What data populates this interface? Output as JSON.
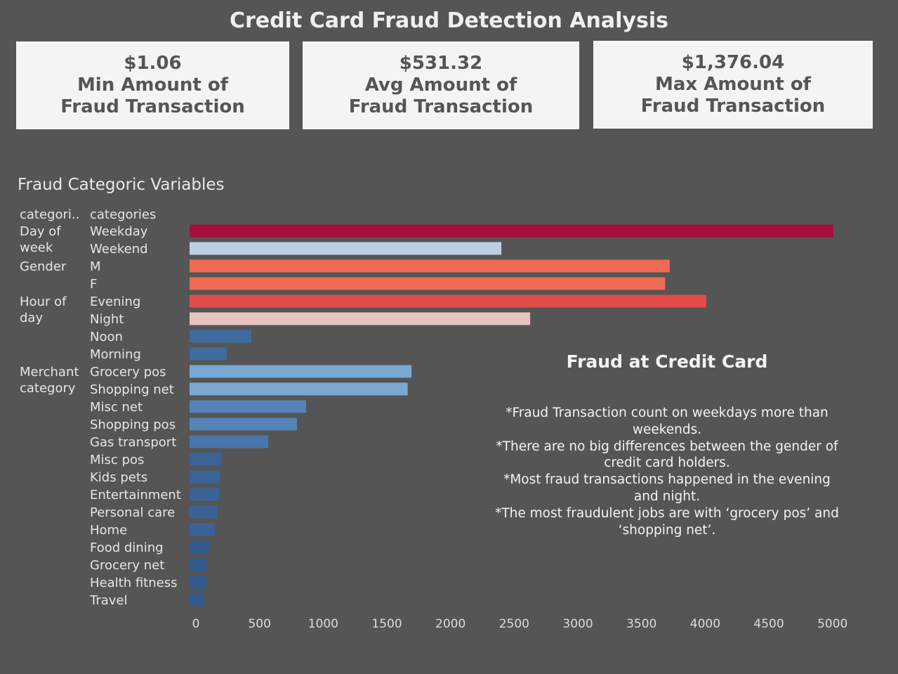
{
  "title": "Credit Card Fraud Detection Analysis",
  "kpis": [
    {
      "value": "$1.06",
      "line1": "Min Amount of",
      "line2": "Fraud Transaction"
    },
    {
      "value": "$531.32",
      "line1": "Avg Amount of",
      "line2": "Fraud Transaction"
    },
    {
      "value": "$1,376.04",
      "line1": "Max Amount of",
      "line2": "Fraud Transaction"
    }
  ],
  "chart_title": "Fraud Categoric Variables",
  "chart_data": {
    "type": "bar",
    "orientation": "horizontal",
    "header_group": "categori..",
    "header_category": "categories",
    "groups": [
      {
        "label": "Day of week",
        "label_lines": [
          "Day of",
          "week"
        ],
        "categories": [
          "Weekday",
          "Weekend"
        ]
      },
      {
        "label": "Gender",
        "label_lines": [
          "Gender"
        ],
        "categories": [
          "M",
          "F"
        ]
      },
      {
        "label": "Hour of day",
        "label_lines": [
          "Hour of",
          "day"
        ],
        "categories": [
          "Evening",
          "Night",
          "Noon",
          "Morning"
        ]
      },
      {
        "label": "Merchant category",
        "label_lines": [
          "Merchant",
          "category"
        ],
        "categories": [
          "Grocery pos",
          "Shopping net",
          "Misc net",
          "Shopping pos",
          "Gas transport",
          "Misc pos",
          "Kids pets",
          "Entertainment",
          "Personal care",
          "Home",
          "Food dining",
          "Grocery net",
          "Health fitness",
          "Travel"
        ]
      }
    ],
    "categories": [
      "Weekday",
      "Weekend",
      "M",
      "F",
      "Evening",
      "Night",
      "Noon",
      "Morning",
      "Grocery pos",
      "Shopping net",
      "Misc net",
      "Shopping pos",
      "Gas transport",
      "Misc pos",
      "Kids pets",
      "Entertainment",
      "Personal care",
      "Home",
      "Food dining",
      "Grocery net",
      "Health fitness",
      "Travel"
    ],
    "values": [
      5056,
      2449,
      3771,
      3735,
      4057,
      2675,
      483,
      291,
      1743,
      1713,
      915,
      843,
      618,
      250,
      239,
      233,
      220,
      198,
      151,
      134,
      133,
      116
    ],
    "colors": [
      "#a50f3c",
      "#bcd0e2",
      "#ee6a55",
      "#ee6a55",
      "#e44c4a",
      "#e8c4be",
      "#3f6b9e",
      "#3f6b9e",
      "#7aa8d2",
      "#7aa8d2",
      "#5584b7",
      "#5584b7",
      "#4777ab",
      "#3a6398",
      "#3a6398",
      "#3a6398",
      "#3a6398",
      "#3a6398",
      "#335c91",
      "#335c91",
      "#335c91",
      "#335c91"
    ],
    "xlim": [
      0,
      5200
    ],
    "xticks": [
      0,
      500,
      1000,
      1500,
      2000,
      2500,
      3000,
      3500,
      4000,
      4500,
      5000
    ],
    "grid": false
  },
  "note_title": "Fraud at Credit Card",
  "notes": [
    "*Fraud Transaction count on weekdays more than weekends.",
    "*There are no big differences between the gender of credit card holders.",
    "*Most fraud transactions happened in the evening and night.",
    "*The most fraudulent jobs are with ‘grocery pos’ and ‘shopping net’."
  ]
}
